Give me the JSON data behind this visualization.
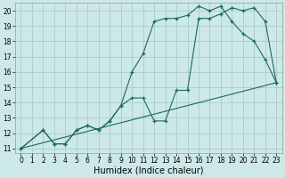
{
  "background_color": "#cde8e8",
  "grid_color": "#aacccc",
  "line_color": "#1a6b5a",
  "line1_x": [
    0,
    2,
    3,
    4,
    5,
    6,
    7,
    8,
    9,
    10,
    11,
    12,
    13,
    14,
    15,
    16,
    17,
    18,
    19,
    20,
    21,
    22,
    23
  ],
  "line1_y": [
    11,
    12.2,
    11.3,
    11.3,
    12.2,
    12.5,
    12.2,
    12.8,
    13.8,
    16.0,
    17.2,
    19.3,
    19.5,
    19.5,
    19.7,
    20.3,
    20.0,
    20.3,
    19.3,
    18.5,
    18.0,
    16.8,
    15.3
  ],
  "line2_x": [
    0,
    2,
    3,
    4,
    5,
    6,
    7,
    8,
    9,
    10,
    11,
    12,
    13,
    14,
    15,
    16,
    17,
    18,
    19,
    20,
    21,
    22,
    23
  ],
  "line2_y": [
    11,
    12.2,
    11.3,
    11.3,
    12.2,
    12.5,
    12.2,
    12.8,
    13.8,
    14.3,
    14.3,
    12.8,
    12.8,
    14.8,
    14.8,
    19.5,
    19.5,
    19.8,
    20.2,
    20.0,
    20.2,
    19.3,
    15.3
  ],
  "line3_x": [
    0,
    23
  ],
  "line3_y": [
    11,
    15.3
  ],
  "xlim": [
    -0.5,
    23.5
  ],
  "ylim": [
    10.7,
    20.5
  ],
  "xticks": [
    0,
    1,
    2,
    3,
    4,
    5,
    6,
    7,
    8,
    9,
    10,
    11,
    12,
    13,
    14,
    15,
    16,
    17,
    18,
    19,
    20,
    21,
    22,
    23
  ],
  "yticks": [
    11,
    12,
    13,
    14,
    15,
    16,
    17,
    18,
    19,
    20
  ],
  "xlabel": "Humidex (Indice chaleur)",
  "xlabel_fontsize": 7,
  "tick_fontsize": 5.5
}
